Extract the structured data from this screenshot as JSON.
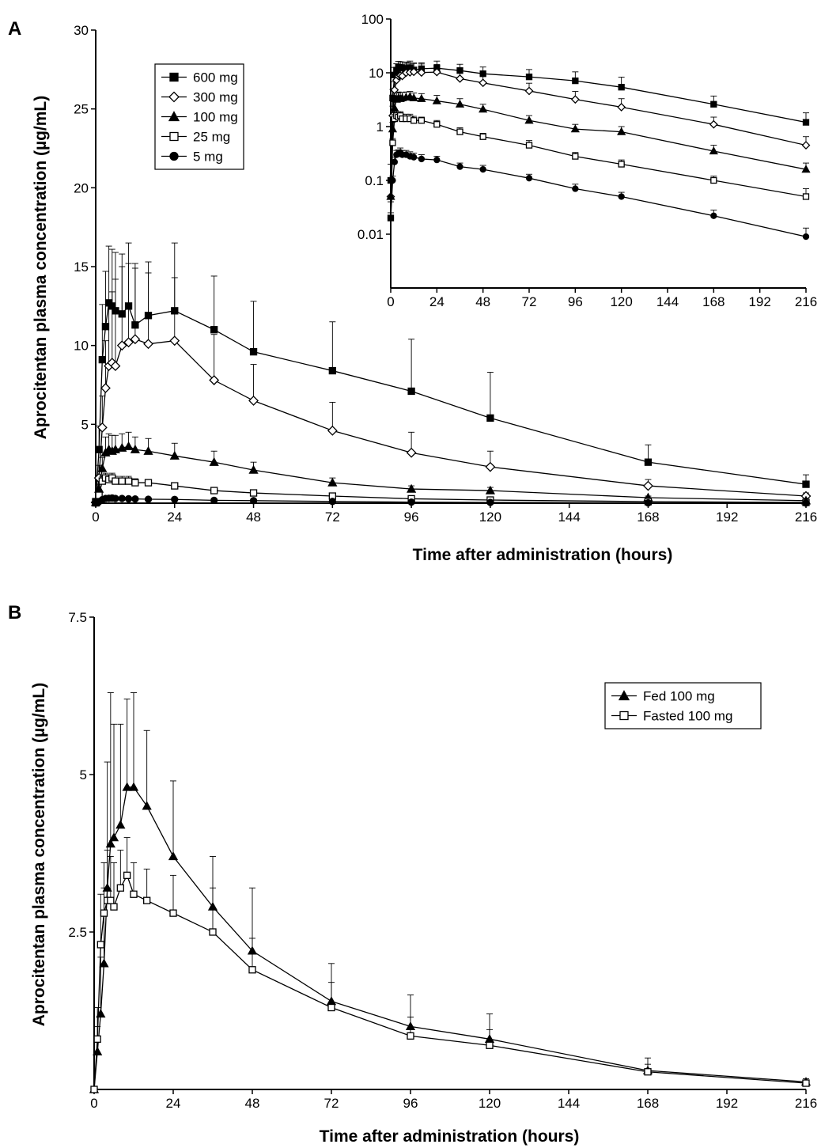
{
  "chart_data": [
    {
      "panel": "A",
      "type": "line",
      "xlabel": "Time after administration (hours)",
      "ylabel": "Aprocitentan plasma concentration (µg/mL)",
      "xlim": [
        0,
        216
      ],
      "ylim": [
        0,
        30
      ],
      "xticks": [
        0,
        24,
        48,
        72,
        96,
        120,
        144,
        168,
        192,
        216
      ],
      "yticks": [
        5,
        10,
        15,
        20,
        25,
        30
      ],
      "ytick_labels": [
        "5",
        "10",
        "15",
        "20",
        "25",
        "30"
      ],
      "error_bars": "upper",
      "legend_position": "top-left",
      "series": [
        {
          "name": "600 mg",
          "marker": "square-filled",
          "marker_size": 8,
          "x": [
            0,
            1,
            2,
            3,
            4,
            5,
            6,
            8,
            10,
            12,
            16,
            24,
            36,
            48,
            72,
            96,
            120,
            168,
            216
          ],
          "y": [
            0.1,
            3.4,
            9.1,
            11.2,
            12.7,
            12.5,
            12.2,
            12.0,
            12.5,
            11.3,
            11.9,
            12.2,
            11.0,
            9.6,
            8.4,
            7.1,
            5.4,
            2.6,
            1.2
          ],
          "err": [
            0.1,
            1.5,
            3.5,
            3.5,
            3.6,
            3.6,
            3.7,
            3.8,
            4.0,
            3.6,
            3.4,
            4.3,
            3.4,
            3.2,
            3.1,
            3.3,
            2.9,
            1.1,
            0.6
          ]
        },
        {
          "name": "300 mg",
          "marker": "diamond-open",
          "marker_size": 9,
          "x": [
            0,
            1,
            2,
            3,
            4,
            5,
            6,
            8,
            10,
            12,
            16,
            24,
            36,
            48,
            72,
            96,
            120,
            168,
            216
          ],
          "y": [
            0.05,
            1.6,
            4.8,
            7.3,
            8.7,
            8.9,
            8.7,
            10.0,
            10.2,
            10.4,
            10.1,
            10.3,
            7.8,
            6.5,
            4.6,
            3.2,
            2.3,
            1.1,
            0.45
          ],
          "err": [
            0.05,
            0.8,
            2.0,
            3.0,
            4.0,
            4.5,
            5.5,
            5.0,
            5.0,
            4.8,
            4.5,
            4.0,
            2.9,
            2.3,
            1.8,
            1.3,
            1.0,
            0.4,
            0.2
          ]
        },
        {
          "name": "100 mg",
          "marker": "triangle-filled",
          "marker_size": 8,
          "x": [
            0,
            1,
            2,
            3,
            4,
            5,
            6,
            8,
            10,
            12,
            16,
            24,
            36,
            48,
            72,
            96,
            120,
            168,
            216
          ],
          "y": [
            0.05,
            0.9,
            2.2,
            3.2,
            3.4,
            3.3,
            3.4,
            3.5,
            3.6,
            3.4,
            3.3,
            3.0,
            2.6,
            2.1,
            1.3,
            0.9,
            0.8,
            0.35,
            0.16
          ],
          "err": [
            0.05,
            0.3,
            0.7,
            1.0,
            1.0,
            1.0,
            0.9,
            0.9,
            0.9,
            0.8,
            0.8,
            0.8,
            0.7,
            0.5,
            0.3,
            0.2,
            0.2,
            0.1,
            0.05
          ]
        },
        {
          "name": "25 mg",
          "marker": "square-open",
          "marker_size": 8,
          "x": [
            0,
            1,
            2,
            3,
            4,
            5,
            6,
            8,
            10,
            12,
            16,
            24,
            36,
            48,
            72,
            96,
            120,
            168,
            216
          ],
          "y": [
            0.02,
            0.5,
            1.4,
            1.6,
            1.5,
            1.6,
            1.4,
            1.4,
            1.4,
            1.3,
            1.3,
            1.1,
            0.8,
            0.65,
            0.45,
            0.28,
            0.2,
            0.1,
            0.05
          ],
          "err": [
            0.02,
            0.1,
            0.3,
            0.3,
            0.3,
            0.3,
            0.3,
            0.3,
            0.3,
            0.25,
            0.2,
            0.2,
            0.15,
            0.1,
            0.1,
            0.05,
            0.04,
            0.02,
            0.02
          ]
        },
        {
          "name": "5 mg",
          "marker": "circle-filled",
          "marker_size": 8,
          "x": [
            0,
            1,
            2,
            3,
            4,
            5,
            6,
            8,
            10,
            12,
            16,
            24,
            36,
            48,
            72,
            96,
            120,
            168,
            216
          ],
          "y": [
            0.02,
            0.1,
            0.22,
            0.3,
            0.31,
            0.33,
            0.3,
            0.3,
            0.28,
            0.27,
            0.25,
            0.24,
            0.18,
            0.16,
            0.11,
            0.07,
            0.05,
            0.022,
            0.009
          ],
          "err": [
            0.005,
            0.02,
            0.05,
            0.06,
            0.06,
            0.07,
            0.06,
            0.06,
            0.06,
            0.05,
            0.05,
            0.04,
            0.03,
            0.03,
            0.02,
            0.015,
            0.01,
            0.006,
            0.004
          ]
        }
      ],
      "inset": {
        "type": "line",
        "yscale": "log",
        "xlim": [
          0,
          216
        ],
        "ylim": [
          0.001,
          100
        ],
        "xticks": [
          0,
          24,
          48,
          72,
          96,
          120,
          144,
          168,
          192,
          216
        ],
        "yticks": [
          0.01,
          0.1,
          1,
          10,
          100
        ],
        "ytick_labels": [
          "0.01",
          "0.1",
          "1",
          "10",
          "100"
        ],
        "same_series_as_main": true
      }
    },
    {
      "panel": "B",
      "type": "line",
      "xlabel": "Time after administration (hours)",
      "ylabel": "Aprocitentan plasma concentration (µg/mL)",
      "xlim": [
        0,
        216
      ],
      "ylim": [
        0,
        7.5
      ],
      "xticks": [
        0,
        24,
        48,
        72,
        96,
        120,
        144,
        168,
        192,
        216
      ],
      "yticks": [
        2.5,
        5,
        7.5
      ],
      "ytick_labels": [
        "2.5",
        "5",
        "7.5"
      ],
      "error_bars": "upper",
      "legend_position": "top-right",
      "series": [
        {
          "name": "Fed 100 mg",
          "marker": "triangle-filled",
          "marker_size": 8,
          "x": [
            0,
            1,
            2,
            3,
            4,
            5,
            6,
            8,
            10,
            12,
            16,
            24,
            36,
            48,
            72,
            96,
            120,
            168,
            216
          ],
          "y": [
            0.0,
            0.6,
            1.2,
            2.0,
            3.2,
            3.9,
            4.0,
            4.2,
            4.8,
            4.8,
            4.5,
            3.7,
            2.9,
            2.2,
            1.4,
            1.0,
            0.8,
            0.3,
            0.12
          ],
          "err": [
            0.0,
            0.4,
            0.9,
            1.2,
            2.0,
            2.4,
            1.8,
            1.6,
            1.4,
            1.5,
            1.2,
            1.2,
            0.8,
            1.0,
            0.6,
            0.5,
            0.4,
            0.2,
            0.05
          ]
        },
        {
          "name": "Fasted 100 mg",
          "marker": "square-open",
          "marker_size": 8,
          "x": [
            0,
            1,
            2,
            3,
            4,
            5,
            6,
            8,
            10,
            12,
            16,
            24,
            36,
            48,
            72,
            96,
            120,
            168,
            216
          ],
          "y": [
            0.0,
            0.8,
            2.3,
            2.8,
            3.0,
            3.0,
            2.9,
            3.2,
            3.4,
            3.1,
            3.0,
            2.8,
            2.5,
            1.9,
            1.3,
            0.85,
            0.7,
            0.28,
            0.1
          ],
          "err": [
            0.0,
            0.5,
            0.8,
            0.8,
            0.8,
            0.7,
            0.7,
            0.6,
            0.6,
            0.5,
            0.5,
            0.6,
            0.7,
            0.5,
            0.4,
            0.3,
            0.25,
            0.12,
            0.04
          ]
        }
      ]
    }
  ],
  "panel_letters": [
    "A",
    "B"
  ]
}
